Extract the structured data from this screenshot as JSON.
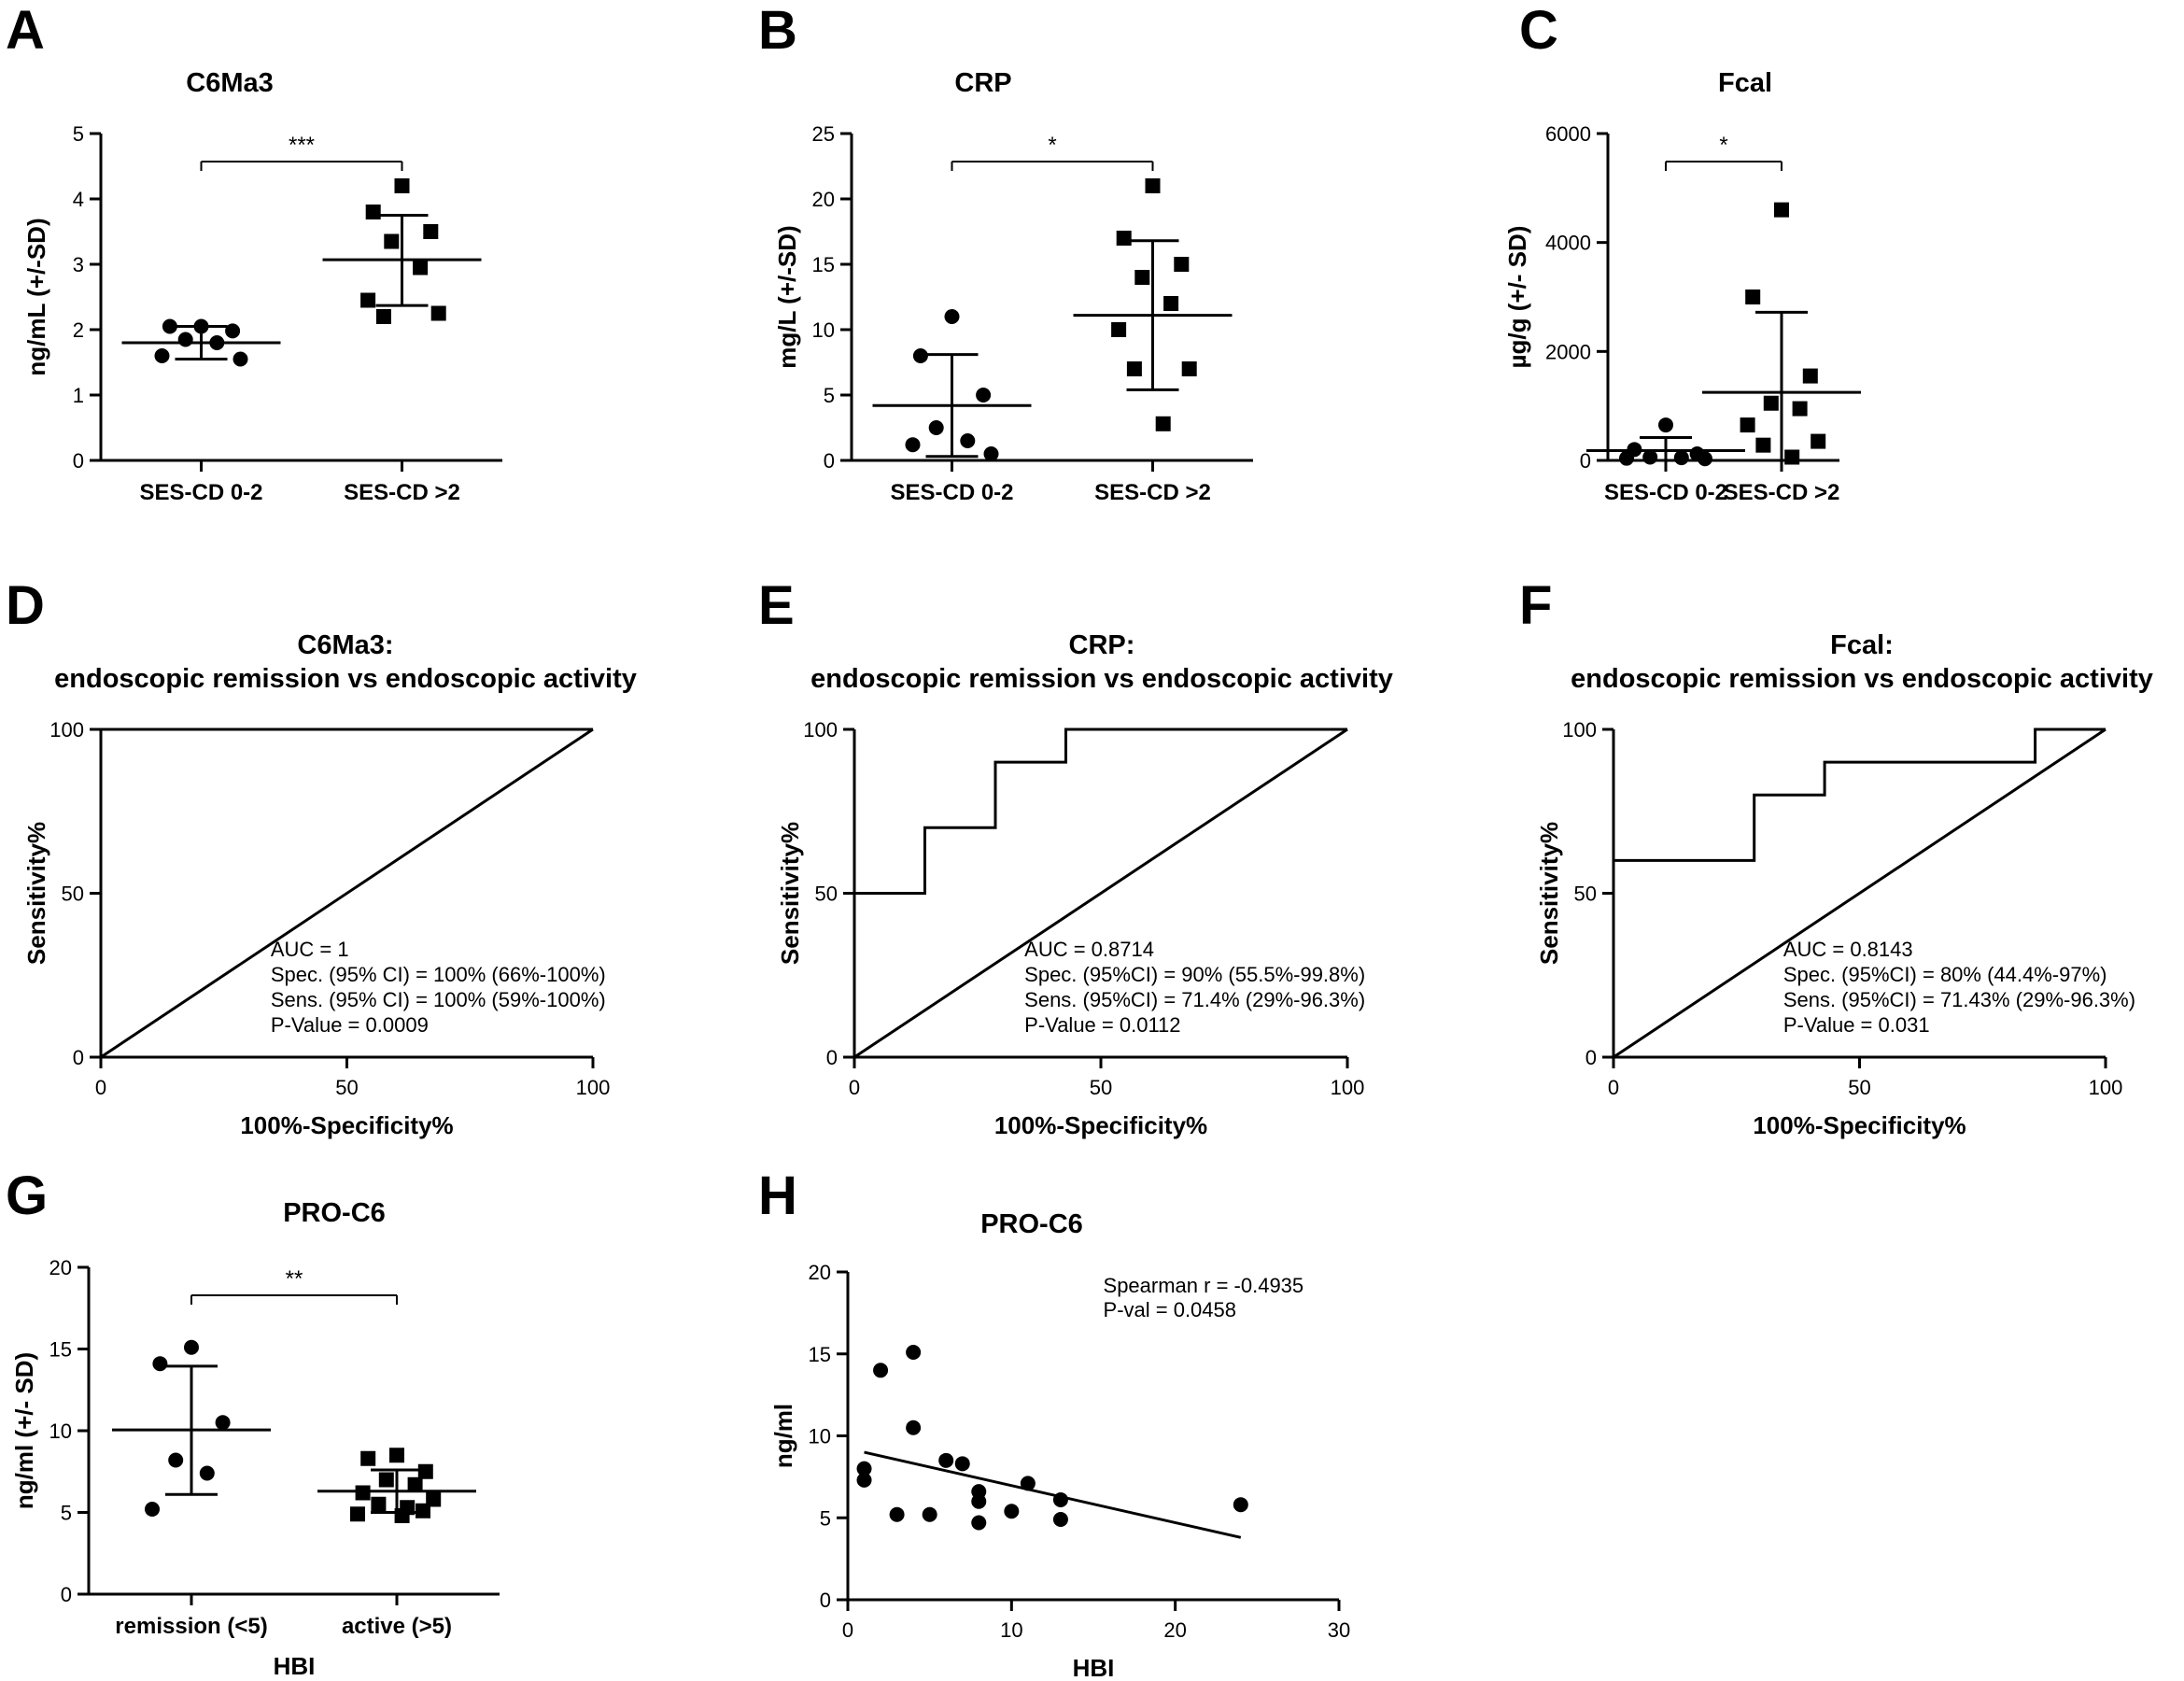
{
  "chart_data": [
    {
      "panel": "A",
      "type": "scatter",
      "title": "C6Ma3",
      "ylabel": "ng/mL (+/-SD)",
      "ylim": [
        0,
        5
      ],
      "yticks": [
        "0",
        "1",
        "2",
        "3",
        "4",
        "5"
      ],
      "categories": [
        "SES-CD 0-2",
        "SES-CD >2"
      ],
      "groups": [
        {
          "marker": "circle",
          "values": [
            2.05,
            2.05,
            1.98,
            1.85,
            1.8,
            1.6,
            1.55
          ],
          "mean": 1.8,
          "sd_low": 1.55,
          "sd_high": 2.05
        },
        {
          "marker": "square",
          "values": [
            4.2,
            3.8,
            3.5,
            3.35,
            2.95,
            2.45,
            2.25,
            2.2
          ],
          "mean": 3.07,
          "sd_low": 2.37,
          "sd_high": 3.75
        }
      ],
      "significance": "***"
    },
    {
      "panel": "B",
      "type": "scatter",
      "title": "CRP",
      "ylabel": "mg/L (+/-SD)",
      "ylim": [
        0,
        25
      ],
      "yticks": [
        "0",
        "5",
        "10",
        "15",
        "20",
        "25"
      ],
      "categories": [
        "SES-CD 0-2",
        "SES-CD >2"
      ],
      "groups": [
        {
          "marker": "circle",
          "values": [
            11,
            8,
            5,
            2.5,
            1.5,
            1.2,
            0.5
          ],
          "mean": 4.2,
          "sd_low": 0.3,
          "sd_high": 8.1
        },
        {
          "marker": "square",
          "values": [
            21,
            17,
            15,
            14,
            12,
            10,
            7,
            7,
            2.8
          ],
          "mean": 11.1,
          "sd_low": 5.4,
          "sd_high": 16.8
        }
      ],
      "significance": "*"
    },
    {
      "panel": "C",
      "type": "scatter",
      "title": "Fcal",
      "ylabel": "µg/g (+/- SD)",
      "ylim": [
        0,
        6000
      ],
      "yticks": [
        "0",
        "2000",
        "4000",
        "6000"
      ],
      "categories": [
        "SES-CD 0-2",
        "SES-CD >2"
      ],
      "groups": [
        {
          "marker": "circle",
          "values": [
            650,
            200,
            120,
            60,
            50,
            40,
            30
          ],
          "mean": 180,
          "sd_low": 0,
          "sd_high": 420
        },
        {
          "marker": "square",
          "values": [
            4600,
            3000,
            1550,
            1050,
            950,
            650,
            350,
            280,
            60
          ],
          "mean": 1250,
          "sd_low": 0,
          "sd_high": 2720
        }
      ],
      "significance": "*"
    },
    {
      "panel": "D",
      "type": "line",
      "title_lines": [
        "C6Ma3:",
        "endoscopic remission vs endoscopic activity"
      ],
      "xlabel": "100%-Specificity%",
      "ylabel": "Sensitivity%",
      "xlim": [
        0,
        100
      ],
      "ylim": [
        0,
        100
      ],
      "xticks": [
        "0",
        "50",
        "100"
      ],
      "yticks": [
        "0",
        "50",
        "100"
      ],
      "roc": [
        [
          0,
          0
        ],
        [
          0,
          100
        ],
        [
          100,
          100
        ]
      ],
      "annotation": [
        "AUC = 1",
        "Spec. (95% CI) = 100% (66%-100%)",
        "Sens. (95% CI) = 100% (59%-100%)",
        "P-Value = 0.0009"
      ]
    },
    {
      "panel": "E",
      "type": "line",
      "title_lines": [
        "CRP:",
        "endoscopic remission vs endoscopic activity"
      ],
      "xlabel": "100%-Specificity%",
      "ylabel": "Sensitivity%",
      "xlim": [
        0,
        100
      ],
      "ylim": [
        0,
        100
      ],
      "xticks": [
        "0",
        "50",
        "100"
      ],
      "yticks": [
        "0",
        "50",
        "100"
      ],
      "roc": [
        [
          0,
          0
        ],
        [
          0,
          50
        ],
        [
          14.3,
          50
        ],
        [
          14.3,
          70
        ],
        [
          28.6,
          70
        ],
        [
          28.6,
          90
        ],
        [
          42.9,
          90
        ],
        [
          42.9,
          100
        ],
        [
          100,
          100
        ]
      ],
      "annotation": [
        "AUC = 0.8714",
        "Spec. (95%CI) = 90% (55.5%-99.8%)",
        "Sens. (95%CI) = 71.4% (29%-96.3%)",
        "P-Value = 0.0112"
      ]
    },
    {
      "panel": "F",
      "type": "line",
      "title_lines": [
        "Fcal:",
        "endoscopic remission vs endoscopic activity"
      ],
      "xlabel": "100%-Specificity%",
      "ylabel": "Sensitivity%",
      "xlim": [
        0,
        100
      ],
      "ylim": [
        0,
        100
      ],
      "xticks": [
        "0",
        "50",
        "100"
      ],
      "yticks": [
        "0",
        "50",
        "100"
      ],
      "roc": [
        [
          0,
          0
        ],
        [
          0,
          60
        ],
        [
          28.6,
          60
        ],
        [
          28.6,
          80
        ],
        [
          42.9,
          80
        ],
        [
          42.9,
          90
        ],
        [
          85.7,
          90
        ],
        [
          85.7,
          100
        ],
        [
          100,
          100
        ]
      ],
      "annotation": [
        "AUC = 0.8143",
        "Spec. (95%CI) = 80% (44.4%-97%)",
        "Sens. (95%CI) = 71.43% (29%-96.3%)",
        "P-Value = 0.031"
      ]
    },
    {
      "panel": "G",
      "type": "scatter",
      "title": "PRO-C6",
      "xlabel": "HBI",
      "ylabel": "ng/ml (+/- SD)",
      "ylim": [
        0,
        20
      ],
      "yticks": [
        "0",
        "5",
        "10",
        "15",
        "20"
      ],
      "categories": [
        "remission (<5)",
        "active (>5)"
      ],
      "groups": [
        {
          "marker": "circle",
          "values": [
            15.1,
            14.1,
            10.5,
            8.2,
            7.4,
            5.2
          ],
          "mean": 10.05,
          "sd_low": 6.1,
          "sd_high": 13.95
        },
        {
          "marker": "square",
          "values": [
            8.5,
            8.3,
            7.5,
            7.0,
            6.7,
            6.2,
            5.8,
            5.5,
            5.3,
            5.1,
            4.9,
            4.8
          ],
          "mean": 6.3,
          "sd_low": 5.0,
          "sd_high": 7.6
        }
      ],
      "significance": "**"
    },
    {
      "panel": "H",
      "type": "scatter",
      "title": "PRO-C6",
      "xlabel": "HBI",
      "ylabel": "ng/ml",
      "xlim": [
        0,
        30
      ],
      "ylim": [
        0,
        20
      ],
      "xticks": [
        "0",
        "10",
        "20",
        "30"
      ],
      "yticks": [
        "0",
        "5",
        "10",
        "15",
        "20"
      ],
      "points": [
        [
          1,
          8.0
        ],
        [
          1,
          7.3
        ],
        [
          2,
          14.0
        ],
        [
          3,
          5.2
        ],
        [
          4,
          15.1
        ],
        [
          4,
          10.5
        ],
        [
          5,
          5.2
        ],
        [
          6,
          8.5
        ],
        [
          7,
          8.3
        ],
        [
          8,
          6.6
        ],
        [
          8,
          6.0
        ],
        [
          8,
          4.7
        ],
        [
          10,
          5.4
        ],
        [
          11,
          7.1
        ],
        [
          13,
          6.1
        ],
        [
          13,
          4.9
        ],
        [
          24,
          5.8
        ]
      ],
      "fit_line": [
        [
          1,
          9.0
        ],
        [
          24,
          3.8
        ]
      ],
      "annotation": [
        "Spearman r = -0.4935",
        "P-val = 0.0458"
      ]
    }
  ]
}
